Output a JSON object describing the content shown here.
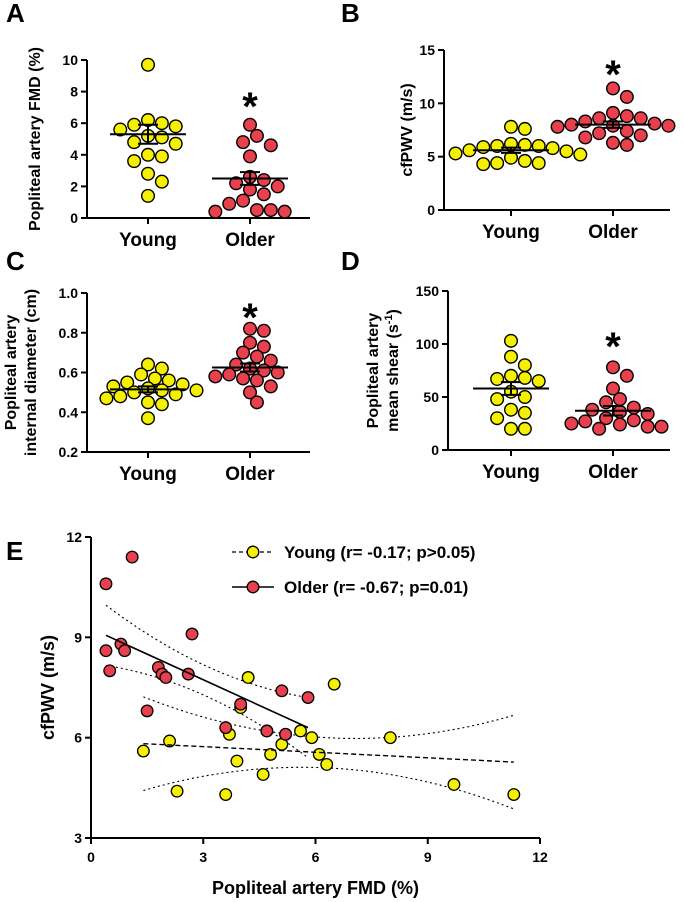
{
  "colors": {
    "young": "#f5f000",
    "older": "#e8404d",
    "stroke": "#000000"
  },
  "chart_data": [
    {
      "panel": "A",
      "type": "scatter",
      "ylabel": "Popliteal artery FMD (%)",
      "ylim": [
        0,
        10
      ],
      "yticks": [
        "0",
        "2",
        "4",
        "6",
        "8",
        "10"
      ],
      "categories": [
        "Young",
        "Older"
      ],
      "series": [
        {
          "name": "Young",
          "mean": 5.3,
          "sem": 0.6,
          "values": [
            9.7,
            6.2,
            6.0,
            5.9,
            5.8,
            5.6,
            5.2,
            5.1,
            4.8,
            4.7,
            4.0,
            3.9,
            3.6,
            2.8,
            2.3,
            1.4
          ]
        },
        {
          "name": "Older",
          "mean": 2.5,
          "sem": 0.4,
          "values": [
            5.9,
            5.2,
            4.8,
            4.6,
            3.9,
            2.6,
            2.4,
            2.2,
            2.0,
            1.8,
            1.5,
            1.1,
            0.9,
            0.5,
            0.5,
            0.4,
            0.4
          ]
        }
      ],
      "annotation": "*"
    },
    {
      "panel": "B",
      "type": "scatter",
      "ylabel": "cfPWV (m/s)",
      "ylim": [
        0,
        15
      ],
      "yticks": [
        "0",
        "5",
        "10",
        "15"
      ],
      "categories": [
        "Young",
        "Older"
      ],
      "series": [
        {
          "name": "Young",
          "mean": 5.6,
          "sem": 0.25,
          "values": [
            7.8,
            7.6,
            6.2,
            6.1,
            6.0,
            6.0,
            5.9,
            5.8,
            5.6,
            5.5,
            5.3,
            5.2,
            4.9,
            4.6,
            4.4,
            4.4,
            4.3
          ]
        },
        {
          "name": "Older",
          "mean": 8.0,
          "sem": 0.3,
          "values": [
            11.4,
            10.6,
            9.1,
            8.8,
            8.6,
            8.6,
            8.3,
            8.1,
            8.0,
            7.9,
            7.9,
            7.8,
            7.4,
            7.2,
            7.0,
            6.8,
            6.3,
            6.1
          ]
        }
      ],
      "annotation": "*"
    },
    {
      "panel": "C",
      "type": "scatter",
      "ylabel_lines": [
        "Popliteal artery",
        "internal diameter (cm)"
      ],
      "ylim": [
        0.2,
        1.0
      ],
      "yticks": [
        "0.2",
        "0.4",
        "0.6",
        "0.8",
        "1.0"
      ],
      "categories": [
        "Young",
        "Older"
      ],
      "series": [
        {
          "name": "Young",
          "mean": 0.515,
          "sem": 0.015,
          "values": [
            0.64,
            0.62,
            0.59,
            0.57,
            0.56,
            0.55,
            0.54,
            0.53,
            0.52,
            0.51,
            0.51,
            0.5,
            0.49,
            0.48,
            0.47,
            0.45,
            0.44,
            0.37
          ]
        },
        {
          "name": "Older",
          "mean": 0.625,
          "sem": 0.02,
          "values": [
            0.82,
            0.81,
            0.75,
            0.73,
            0.7,
            0.68,
            0.66,
            0.64,
            0.62,
            0.61,
            0.6,
            0.59,
            0.58,
            0.57,
            0.56,
            0.53,
            0.5,
            0.45
          ]
        }
      ],
      "annotation": "*"
    },
    {
      "panel": "D",
      "type": "scatter",
      "ylabel_lines": [
        "Popliteal artery",
        "mean shear (s",
        "-1",
        ")"
      ],
      "ylim": [
        0,
        150
      ],
      "yticks": [
        "0",
        "50",
        "100",
        "150"
      ],
      "categories": [
        "Young",
        "Older"
      ],
      "series": [
        {
          "name": "Young",
          "mean": 58,
          "sem": 6,
          "values": [
            103,
            88,
            80,
            70,
            68,
            67,
            65,
            55,
            50,
            48,
            38,
            35,
            30,
            20,
            20
          ]
        },
        {
          "name": "Older",
          "mean": 37,
          "sem": 4.5,
          "values": [
            78,
            70,
            58,
            48,
            45,
            40,
            38,
            36,
            34,
            30,
            28,
            27,
            25,
            24,
            22,
            22,
            20
          ]
        }
      ],
      "annotation": "*"
    },
    {
      "panel": "E",
      "type": "scatter",
      "xlabel": "Popliteal artery FMD (%)",
      "ylabel": "cfPWV (m/s)",
      "xlim": [
        0,
        12
      ],
      "ylim": [
        3,
        12
      ],
      "xticks": [
        "0",
        "3",
        "6",
        "9",
        "12"
      ],
      "yticks": [
        "3",
        "6",
        "9",
        "12"
      ],
      "legend": [
        "Young (r= -0.17; p>0.05)",
        "Older (r= -0.67; p=0.01)"
      ],
      "legend_position": "top-right",
      "series": [
        {
          "name": "Young",
          "x": [
            1.4,
            2.1,
            2.3,
            3.6,
            3.7,
            3.9,
            4.0,
            4.2,
            4.6,
            4.7,
            4.8,
            5.1,
            5.2,
            5.6,
            5.9,
            6.1,
            6.3,
            6.5,
            8.0,
            9.7,
            11.3
          ],
          "y": [
            5.6,
            5.9,
            4.4,
            4.3,
            6.1,
            5.3,
            6.9,
            7.8,
            4.9,
            6.2,
            5.5,
            5.8,
            6.1,
            6.2,
            6.0,
            5.5,
            5.2,
            7.6,
            6.0,
            4.6,
            4.3
          ],
          "fit": {
            "x": [
              1.4,
              11.3
            ],
            "y": [
              5.82,
              5.27
            ]
          }
        },
        {
          "name": "Older",
          "x": [
            0.4,
            0.4,
            0.5,
            0.8,
            0.9,
            1.1,
            1.5,
            1.8,
            1.9,
            2.0,
            2.6,
            2.7,
            3.6,
            4.0,
            4.7,
            5.1,
            5.2,
            5.8
          ],
          "y": [
            8.6,
            10.6,
            8.0,
            8.8,
            8.6,
            11.4,
            6.8,
            8.1,
            7.9,
            7.8,
            7.9,
            9.1,
            6.3,
            7.0,
            6.2,
            7.4,
            6.1,
            7.2
          ],
          "fit": {
            "x": [
              0.4,
              5.8
            ],
            "y": [
              9.06,
              6.3
            ]
          }
        }
      ]
    }
  ]
}
